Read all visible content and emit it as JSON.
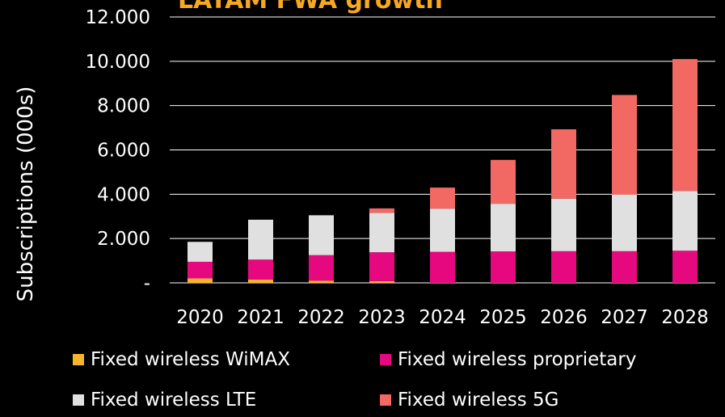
{
  "chart_data": {
    "type": "bar",
    "stacked": true,
    "title": "LATAM FWA growth",
    "ylabel": "Subscriptions (000s)",
    "xlabel": "",
    "ylim": [
      0,
      12000
    ],
    "yticks": [
      0,
      2000,
      4000,
      6000,
      8000,
      10000,
      12000
    ],
    "ytick_labels": [
      "-",
      "2.000",
      "4.000",
      "6.000",
      "8.000",
      "10.000",
      "12.000"
    ],
    "grid": true,
    "legend_position": "bottom",
    "categories": [
      "2020",
      "2021",
      "2022",
      "2023",
      "2024",
      "2025",
      "2026",
      "2027",
      "2028"
    ],
    "series": [
      {
        "name": "Fixed wireless WiMAX",
        "color": "#f7b52c",
        "values": [
          200,
          150,
          100,
          80,
          0,
          0,
          0,
          0,
          0
        ]
      },
      {
        "name": "Fixed wireless proprietary",
        "color": "#e6087f",
        "values": [
          750,
          900,
          1150,
          1300,
          1400,
          1420,
          1430,
          1430,
          1450
        ]
      },
      {
        "name": "Fixed wireless LTE",
        "color": "#e0e0e0",
        "values": [
          900,
          1800,
          1800,
          1780,
          1950,
          2150,
          2370,
          2550,
          2700
        ]
      },
      {
        "name": "Fixed wireless 5G",
        "color": "#f26964",
        "values": [
          0,
          0,
          0,
          200,
          950,
          1980,
          3130,
          4500,
          5950
        ]
      }
    ]
  }
}
